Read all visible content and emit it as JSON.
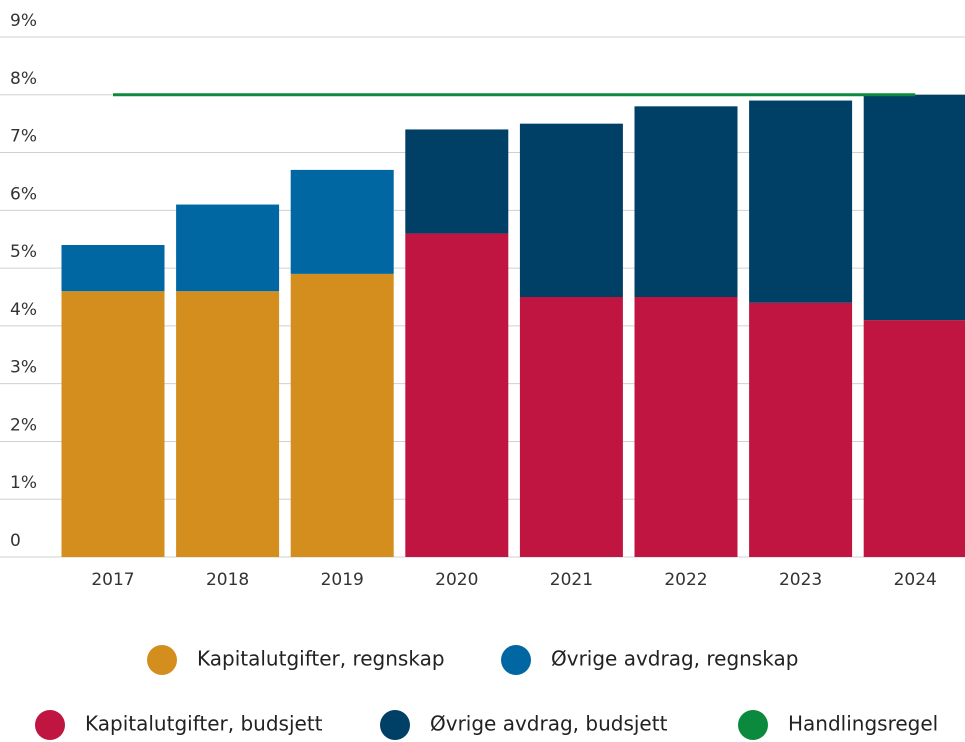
{
  "chart_data": {
    "type": "bar",
    "stacked": true,
    "categories": [
      "2017",
      "2018",
      "2019",
      "2020",
      "2021",
      "2022",
      "2023",
      "2024"
    ],
    "series": [
      {
        "name": "Kapitalutgifter, regnskap",
        "color": "#d38e1e",
        "values": [
          4.6,
          4.6,
          4.9,
          null,
          null,
          null,
          null,
          null
        ]
      },
      {
        "name": "Øvrige avdrag, regnskap",
        "color": "#0067a3",
        "values": [
          0.8,
          1.5,
          1.8,
          null,
          null,
          null,
          null,
          null
        ]
      },
      {
        "name": "Kapitalutgifter, budsjett",
        "color": "#c01540",
        "values": [
          null,
          null,
          null,
          5.6,
          4.5,
          4.5,
          4.4,
          4.1
        ]
      },
      {
        "name": "Øvrige avdrag, budsjett",
        "color": "#003f66",
        "values": [
          null,
          null,
          null,
          1.8,
          3.0,
          3.3,
          3.5,
          3.9
        ]
      },
      {
        "name": "Handlingsregel",
        "color": "#0b8a3e",
        "type": "line",
        "values": [
          8,
          8,
          8,
          8,
          8,
          8,
          8,
          8
        ]
      }
    ],
    "ylim": [
      0,
      9
    ],
    "yticks": [
      0,
      {
        "value": 1,
        "label": "1%"
      },
      {
        "value": 2,
        "label": "2%"
      },
      {
        "value": 3,
        "label": "3%"
      },
      {
        "value": 4,
        "label": "4%"
      },
      {
        "value": 5,
        "label": "5%"
      },
      {
        "value": 6,
        "label": "6%"
      },
      {
        "value": 7,
        "label": "7%"
      },
      {
        "value": 8,
        "label": "8%"
      },
      {
        "value": 9,
        "label": "9%"
      }
    ],
    "grid": true,
    "legend": "bottom"
  }
}
